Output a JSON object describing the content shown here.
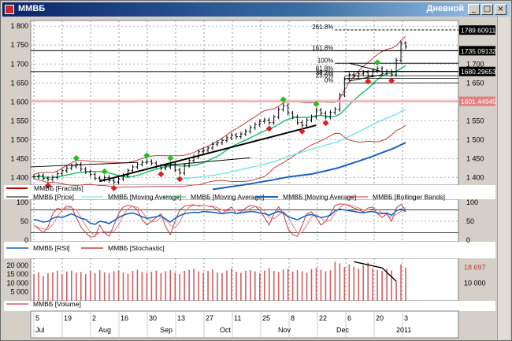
{
  "window": {
    "title": "ММВБ",
    "period": "Дневной",
    "buttons": [
      "_",
      "□",
      "×"
    ]
  },
  "chart_data": [
    {
      "type": "line",
      "panel": "price",
      "y_ticks": [
        "1 800",
        "1 750",
        "1 700",
        "1 650",
        "1 600",
        "1 550",
        "1 500",
        "1 450",
        "1 400"
      ],
      "y_ticks_right": [
        "1 700",
        "1 650",
        "1 550",
        "1 500",
        "1 450",
        "1 400"
      ],
      "ylim": [
        1380,
        1815
      ],
      "price_tags": [
        {
          "value": 1789.60911,
          "label": "1789.60911",
          "color": "#000000",
          "text": "#ffffff"
        },
        {
          "value": 1735.09132,
          "label": "1735.09132",
          "color": "#000000",
          "text": "#ffffff"
        },
        {
          "value": 1680.29653,
          "label": "1680.29653",
          "color": "#000000",
          "text": "#ffffff"
        },
        {
          "value": 1601.44945,
          "label": "1601.44945",
          "color": "#e08080",
          "text": "#ffffff"
        }
      ],
      "fib_levels": [
        {
          "label": "261.8%",
          "value": 1790
        },
        {
          "label": "161.8%",
          "value": 1735
        },
        {
          "label": "100%",
          "value": 1702
        },
        {
          "label": "61.8%",
          "value": 1681
        },
        {
          "label": "38.2%",
          "value": 1669
        },
        {
          "label": "23.6%",
          "value": 1662
        },
        {
          "label": "0%",
          "value": 1650
        }
      ],
      "horizontal_lines": [
        1790,
        1735,
        1680,
        1602
      ],
      "close": [
        1402,
        1405,
        1398,
        1395,
        1400,
        1410,
        1418,
        1425,
        1430,
        1435,
        1422,
        1415,
        1408,
        1398,
        1395,
        1400,
        1392,
        1388,
        1396,
        1405,
        1418,
        1428,
        1435,
        1440,
        1442,
        1438,
        1430,
        1425,
        1428,
        1435,
        1420,
        1412,
        1432,
        1445,
        1455,
        1468,
        1472,
        1478,
        1488,
        1492,
        1498,
        1505,
        1512,
        1508,
        1515,
        1522,
        1532,
        1540,
        1548,
        1552,
        1545,
        1560,
        1580,
        1590,
        1570,
        1560,
        1545,
        1538,
        1552,
        1560,
        1578,
        1570,
        1560,
        1572,
        1580,
        1618,
        1660,
        1672,
        1668,
        1674,
        1678,
        1670,
        1682,
        1688,
        1675,
        1680,
        1672,
        1710,
        1755,
        1745
      ],
      "series": [
        {
          "name": "ММВБ [Fractals]",
          "color": "#cc0000",
          "legend_style": "line-thick"
        },
        {
          "name": "ММВБ [Price]",
          "color": "#000000",
          "legend_style": "line"
        },
        {
          "name": "ММВБ [Moving Average]",
          "color": "#66e0e0",
          "legend_style": "line"
        },
        {
          "name": "ММВБ [Moving Average]",
          "color": "#22c070",
          "legend_style": "line"
        },
        {
          "name": "ММВБ [Moving Average]",
          "color": "#2060c0",
          "legend_style": "line-thick"
        },
        {
          "name": "ММВБ [Bollinger Bands]",
          "color": "#c04040",
          "legend_style": "line"
        }
      ]
    },
    {
      "type": "line",
      "panel": "oscillator",
      "y_ticks": [
        "100",
        "50",
        "0"
      ],
      "ylim": [
        0,
        100
      ],
      "levels": [
        80,
        20
      ],
      "rsi": [
        55,
        52,
        48,
        50,
        58,
        62,
        60,
        65,
        70,
        64,
        58,
        55,
        45,
        42,
        50,
        48,
        44,
        52,
        60,
        66,
        70,
        72,
        68,
        62,
        58,
        60,
        62,
        65,
        56,
        48,
        58,
        65,
        70,
        72,
        74,
        73,
        76,
        75,
        74,
        72,
        70,
        72,
        74,
        70,
        72,
        74,
        76,
        75,
        72,
        70,
        66,
        72,
        76,
        72,
        62,
        58,
        54,
        60,
        66,
        68,
        64,
        60,
        62,
        66,
        78,
        82,
        80,
        78,
        76,
        74,
        72,
        75,
        76,
        72,
        70,
        72,
        66,
        78,
        82,
        76
      ],
      "stoch": [
        40,
        30,
        20,
        35,
        70,
        85,
        80,
        90,
        88,
        60,
        35,
        20,
        8,
        10,
        40,
        20,
        10,
        40,
        70,
        88,
        92,
        90,
        80,
        55,
        40,
        50,
        60,
        70,
        35,
        15,
        50,
        80,
        90,
        92,
        94,
        90,
        92,
        90,
        88,
        80,
        70,
        80,
        88,
        70,
        75,
        85,
        92,
        90,
        80,
        60,
        40,
        70,
        88,
        70,
        30,
        15,
        10,
        40,
        70,
        75,
        60,
        40,
        50,
        70,
        92,
        96,
        95,
        90,
        85,
        80,
        75,
        85,
        88,
        70,
        60,
        70,
        50,
        85,
        95,
        80
      ],
      "series": [
        {
          "name": "ММВБ [RSI]",
          "color": "#1060c0"
        },
        {
          "name": "ММВБ [Stochastic]",
          "color": "#c04040"
        }
      ]
    },
    {
      "type": "bar",
      "panel": "volume",
      "y_ticks": [
        "20 000",
        "15 000",
        "10 000",
        "5 000"
      ],
      "y_ticks_right": [
        "18 697",
        "10 000"
      ],
      "ylim": [
        0,
        23000
      ],
      "last_value_label": "18 697",
      "values": [
        15000,
        16000,
        14000,
        15500,
        16000,
        17000,
        15000,
        16500,
        17000,
        15800,
        16200,
        15000,
        16800,
        15500,
        17200,
        16000,
        15500,
        16600,
        17000,
        16000,
        15200,
        16800,
        17500,
        16200,
        15800,
        16400,
        17000,
        15600,
        16600,
        17200,
        16000,
        15000,
        16800,
        17400,
        18000,
        16600,
        15800,
        16800,
        17600,
        16000,
        15600,
        17000,
        18200,
        16400,
        15800,
        16800,
        17200,
        16600,
        15400,
        17000,
        18400,
        16800,
        16200,
        17600,
        18000,
        16400,
        17200,
        16600,
        15800,
        17800,
        18600,
        17400,
        16600,
        17200,
        22000,
        21000,
        19000,
        20500,
        19200,
        18000,
        20000,
        21500,
        18200,
        17200,
        16800,
        18000,
        17000,
        11000,
        20500,
        18697
      ],
      "series": [
        {
          "name": "ММВБ [Volume]",
          "color": "#d06060"
        }
      ]
    }
  ],
  "x_axis": {
    "days": [
      "5",
      "19",
      "2",
      "16",
      "30",
      "13",
      "27",
      "11",
      "25",
      "8",
      "22",
      "6",
      "20",
      "3"
    ],
    "months": [
      "Jul",
      "Aug",
      "Sep",
      "Oct",
      "Nov",
      "Dec",
      "2011"
    ]
  }
}
